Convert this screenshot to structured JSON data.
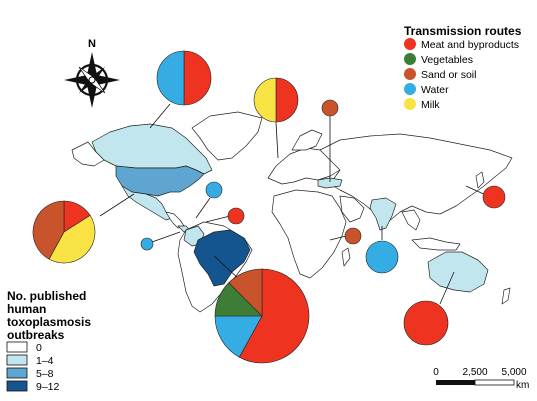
{
  "compass": {
    "label": "N"
  },
  "routes_legend": {
    "title": "Transmission routes",
    "items": [
      {
        "label": "Meat and byproducts",
        "color": "#ee3421"
      },
      {
        "label": "Vegetables",
        "color": "#3e7d36"
      },
      {
        "label": "Sand or soil",
        "color": "#c9542b"
      },
      {
        "label": "Water",
        "color": "#35ade4"
      },
      {
        "label": "Milk",
        "color": "#f8e244"
      }
    ]
  },
  "outbreaks_legend": {
    "title_lines": [
      "No. published",
      "human",
      "toxoplasmosis",
      "outbreaks"
    ],
    "items": [
      {
        "label": "0",
        "color": "#ffffff"
      },
      {
        "label": "1–4",
        "color": "#c2e6ee"
      },
      {
        "label": "5–8",
        "color": "#5ea6d1"
      },
      {
        "label": "9–12",
        "color": "#15558f"
      }
    ]
  },
  "scale_bar": {
    "ticks": [
      "0",
      "2,500",
      "5,000"
    ],
    "unit": "km"
  },
  "regions": [
    {
      "name": "Canada",
      "outbreaks_class": "1–4"
    },
    {
      "name": "United States",
      "outbreaks_class": "5–8"
    },
    {
      "name": "Mexico",
      "outbreaks_class": "1–4"
    },
    {
      "name": "Panama",
      "outbreaks_class": "1–4"
    },
    {
      "name": "Colombia",
      "outbreaks_class": "1–4"
    },
    {
      "name": "Brazil",
      "outbreaks_class": "9–12"
    },
    {
      "name": "Turkey",
      "outbreaks_class": "1–4"
    },
    {
      "name": "India",
      "outbreaks_class": "1–4"
    },
    {
      "name": "Australia",
      "outbreaks_class": "1–4"
    }
  ],
  "pie_charts": [
    {
      "id": "canada",
      "slices": [
        {
          "route": "Meat and byproducts",
          "fraction": 0.5
        },
        {
          "route": "Water",
          "fraction": 0.5
        }
      ]
    },
    {
      "id": "europe",
      "slices": [
        {
          "route": "Meat and byproducts",
          "fraction": 0.5
        },
        {
          "route": "Milk",
          "fraction": 0.5
        }
      ]
    },
    {
      "id": "turkey",
      "slices": [
        {
          "route": "Sand or soil",
          "fraction": 1.0
        }
      ]
    },
    {
      "id": "usa",
      "slices": [
        {
          "route": "Meat and byproducts",
          "fraction": 0.16
        },
        {
          "route": "Milk",
          "fraction": 0.42
        },
        {
          "route": "Sand or soil",
          "fraction": 0.42
        }
      ]
    },
    {
      "id": "mexico",
      "slices": [
        {
          "route": "Water",
          "fraction": 1.0
        }
      ]
    },
    {
      "id": "caribbean",
      "slices": [
        {
          "route": "Meat and byproducts",
          "fraction": 1.0
        }
      ]
    },
    {
      "id": "panama",
      "slices": [
        {
          "route": "Water",
          "fraction": 1.0
        }
      ]
    },
    {
      "id": "brazil",
      "slices": [
        {
          "route": "Meat and byproducts",
          "fraction": 0.58
        },
        {
          "route": "Water",
          "fraction": 0.17
        },
        {
          "route": "Vegetables",
          "fraction": 0.125
        },
        {
          "route": "Sand or soil",
          "fraction": 0.125
        }
      ]
    },
    {
      "id": "africa",
      "slices": [
        {
          "route": "Sand or soil",
          "fraction": 1.0
        }
      ]
    },
    {
      "id": "india",
      "slices": [
        {
          "route": "Water",
          "fraction": 1.0
        }
      ]
    },
    {
      "id": "korea",
      "slices": [
        {
          "route": "Meat and byproducts",
          "fraction": 1.0
        }
      ]
    },
    {
      "id": "australia",
      "slices": [
        {
          "route": "Meat and byproducts",
          "fraction": 1.0
        }
      ]
    }
  ]
}
